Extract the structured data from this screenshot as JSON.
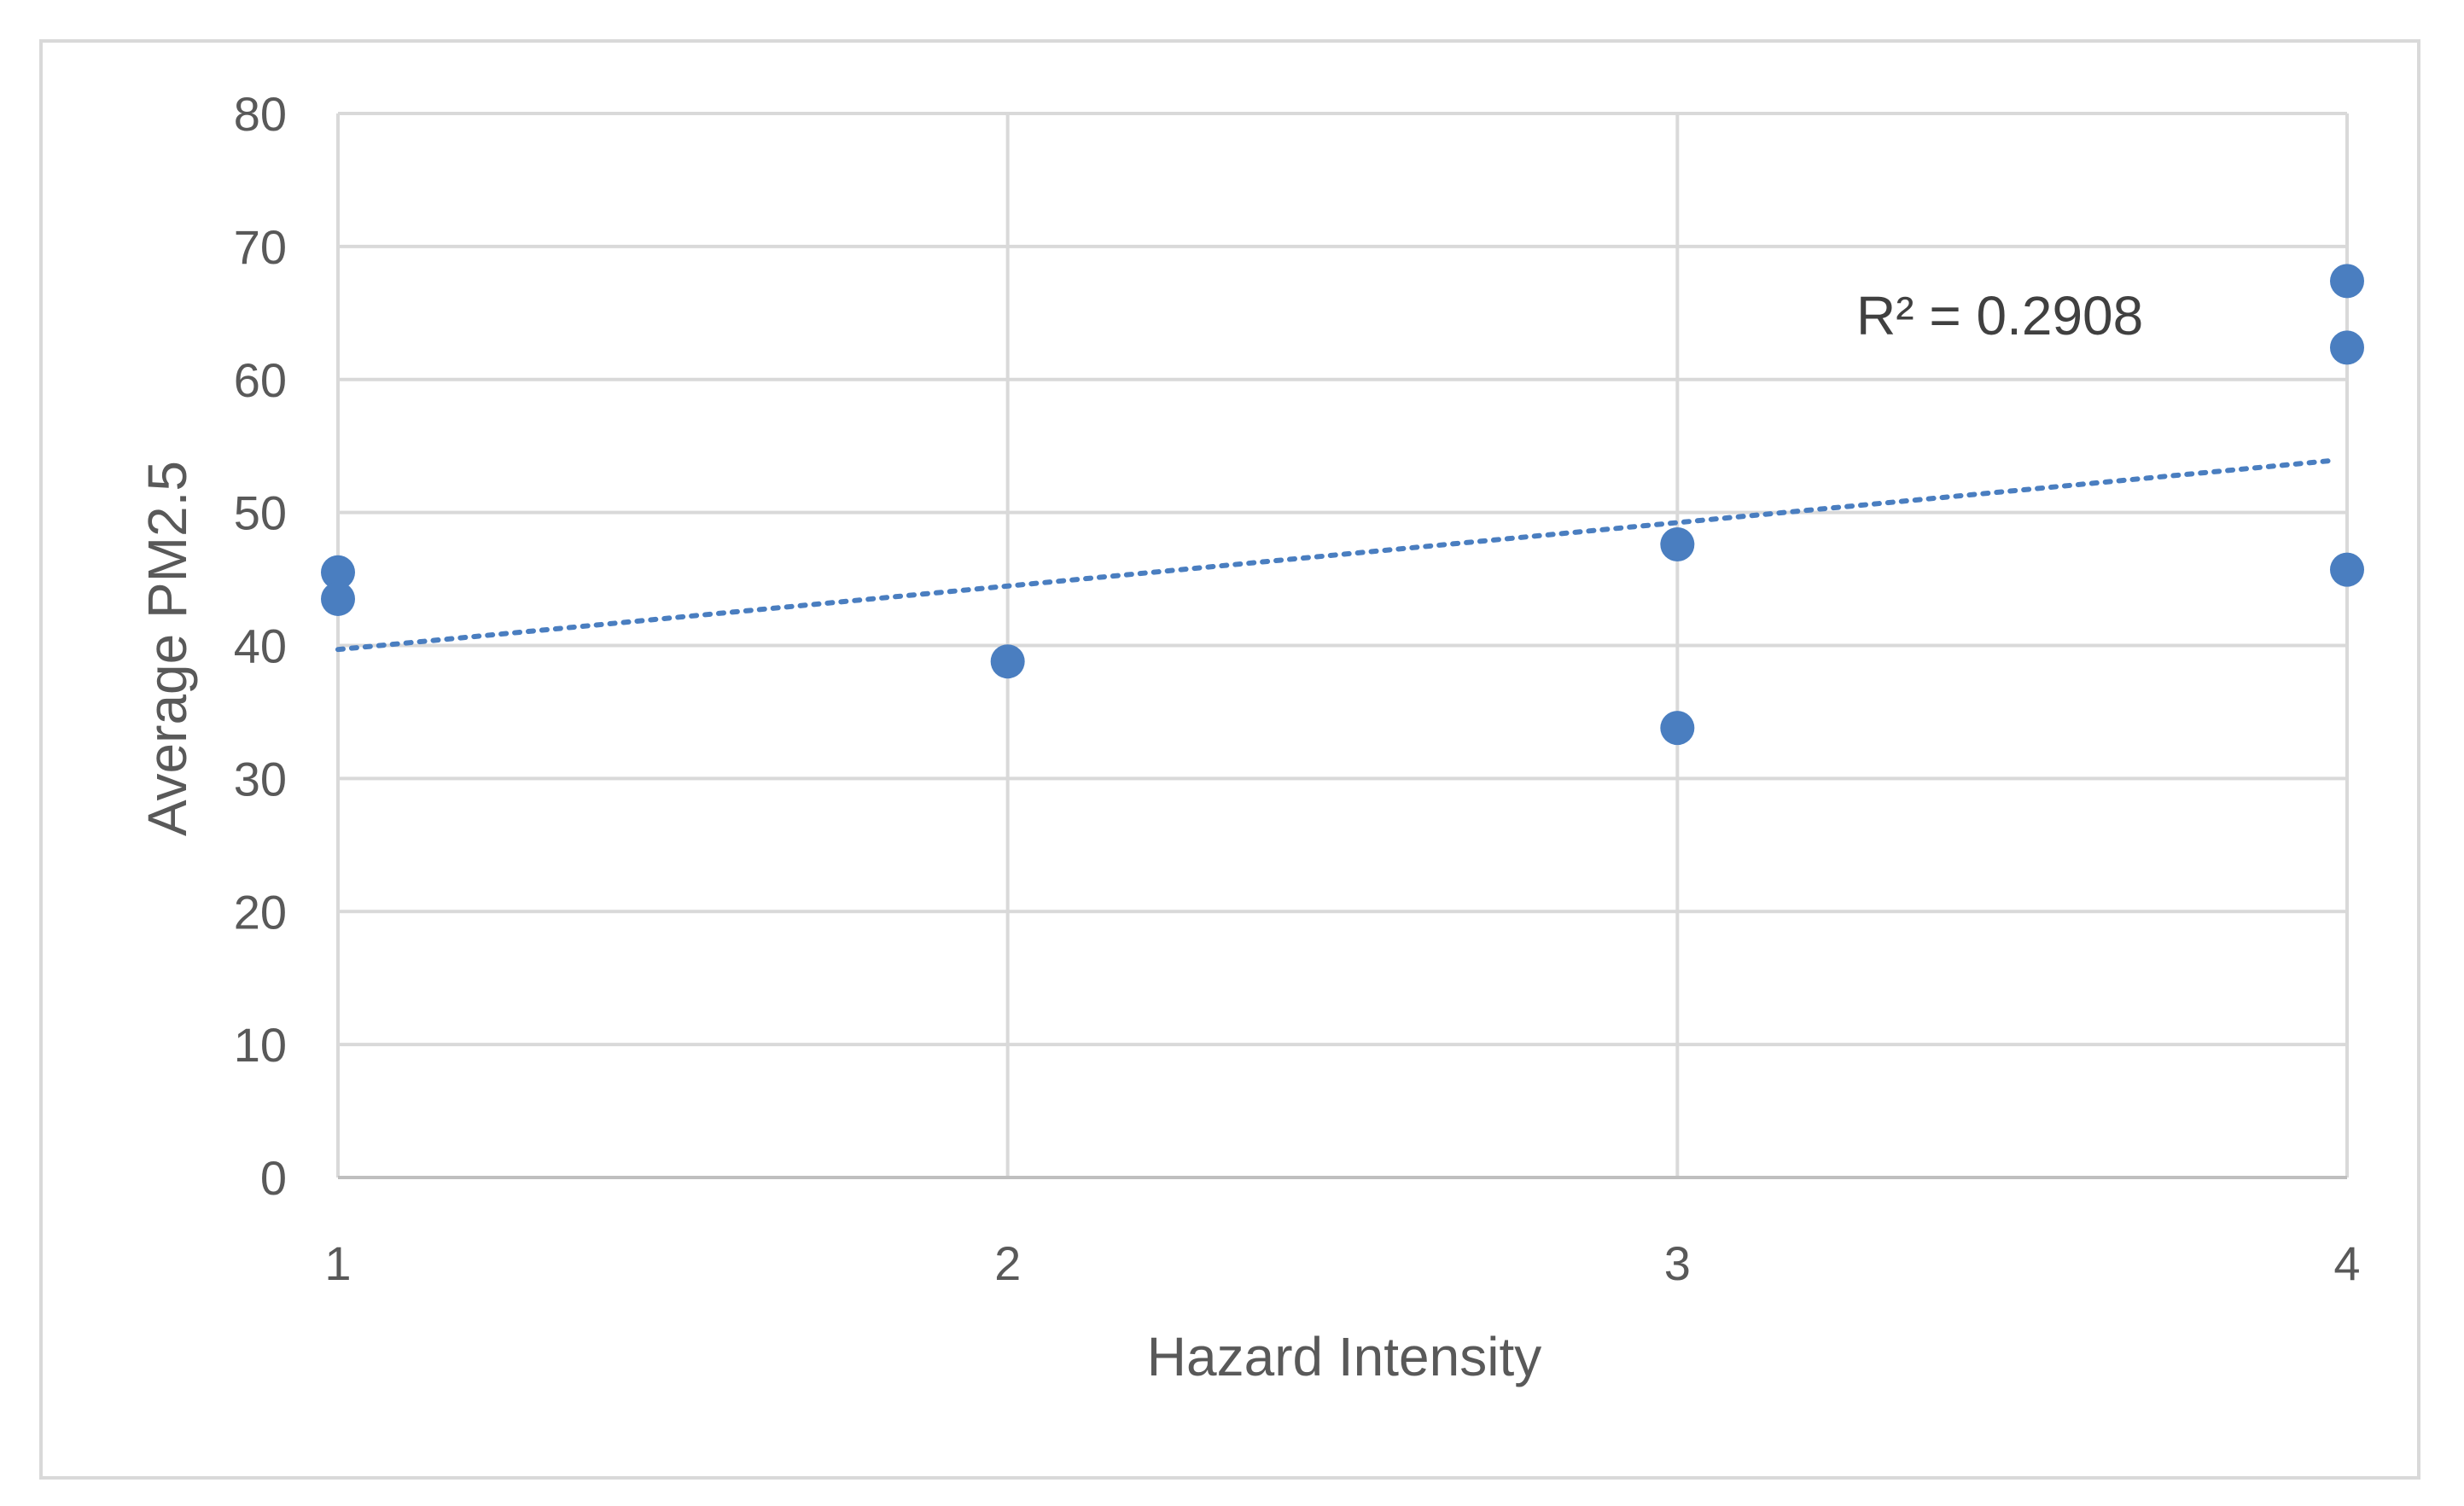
{
  "chart_data": {
    "type": "scatter",
    "xlabel": "Hazard Intensity",
    "ylabel": "Average PM2.5",
    "xlim": [
      1,
      4
    ],
    "ylim": [
      0,
      80
    ],
    "x_ticks": [
      "1",
      "2",
      "3",
      "4"
    ],
    "y_ticks": [
      "0",
      "10",
      "20",
      "30",
      "40",
      "50",
      "60",
      "70",
      "80"
    ],
    "grid": true,
    "points": [
      {
        "x": 1,
        "y": 45.5
      },
      {
        "x": 1,
        "y": 43.5
      },
      {
        "x": 2,
        "y": 38.8
      },
      {
        "x": 3,
        "y": 47.6
      },
      {
        "x": 3,
        "y": 33.8
      },
      {
        "x": 4,
        "y": 67.4
      },
      {
        "x": 4,
        "y": 62.4
      },
      {
        "x": 4,
        "y": 45.7
      }
    ],
    "trendline": {
      "type": "linear",
      "style": "dotted",
      "x": [
        1,
        4
      ],
      "y": [
        39.7,
        53.9
      ]
    },
    "annotation": "R² = 0.2908",
    "colors": {
      "marker": "#4a7ec0",
      "grid": "#d9d9d9",
      "text": "#595959"
    }
  }
}
